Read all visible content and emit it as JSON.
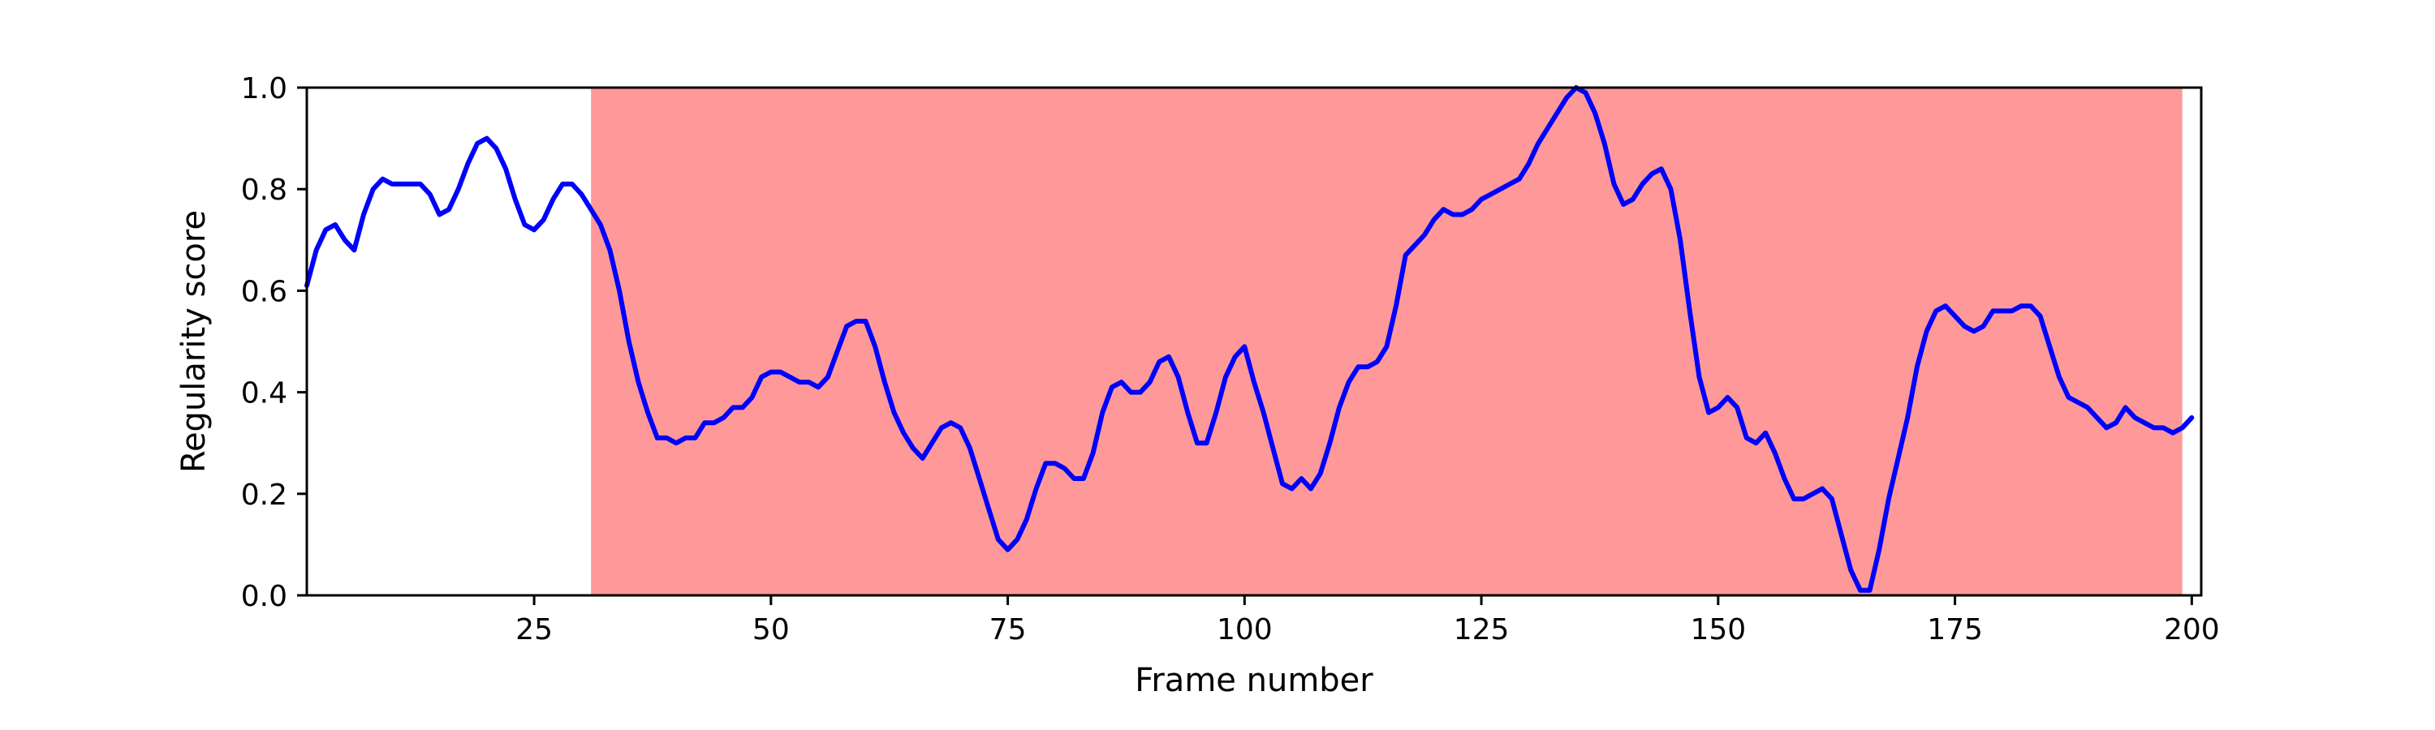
{
  "chart_data": {
    "type": "line",
    "title": "",
    "xlabel": "Frame number",
    "ylabel": "Regularity score",
    "xlim": [
      1,
      201
    ],
    "ylim": [
      0,
      1
    ],
    "xticks": [
      25,
      50,
      75,
      100,
      125,
      150,
      175,
      200
    ],
    "yticks": [
      0.0,
      0.2,
      0.4,
      0.6,
      0.8,
      1.0
    ],
    "xtick_labels": [
      "25",
      "50",
      "75",
      "100",
      "125",
      "150",
      "175",
      "200"
    ],
    "ytick_labels": [
      "0.0",
      "0.2",
      "0.4",
      "0.6",
      "0.8",
      "1.0"
    ],
    "grid": false,
    "line_color": "#0000ff",
    "shaded_region": {
      "x": [
        31,
        199
      ],
      "color": "#ff9999"
    },
    "series": [
      {
        "points": [
          [
            1,
            0.61
          ],
          [
            2,
            0.68
          ],
          [
            3,
            0.72
          ],
          [
            4,
            0.73
          ],
          [
            5,
            0.7
          ],
          [
            6,
            0.68
          ],
          [
            7,
            0.75
          ],
          [
            8,
            0.8
          ],
          [
            9,
            0.82
          ],
          [
            10,
            0.81
          ],
          [
            11,
            0.81
          ],
          [
            12,
            0.81
          ],
          [
            13,
            0.81
          ],
          [
            14,
            0.79
          ],
          [
            15,
            0.75
          ],
          [
            16,
            0.76
          ],
          [
            17,
            0.8
          ],
          [
            18,
            0.85
          ],
          [
            19,
            0.89
          ],
          [
            20,
            0.9
          ],
          [
            21,
            0.88
          ],
          [
            22,
            0.84
          ],
          [
            23,
            0.78
          ],
          [
            24,
            0.73
          ],
          [
            25,
            0.72
          ],
          [
            26,
            0.74
          ],
          [
            27,
            0.78
          ],
          [
            28,
            0.81
          ],
          [
            29,
            0.81
          ],
          [
            30,
            0.79
          ],
          [
            31,
            0.76
          ],
          [
            32,
            0.73
          ],
          [
            33,
            0.68
          ],
          [
            34,
            0.6
          ],
          [
            35,
            0.5
          ],
          [
            36,
            0.42
          ],
          [
            37,
            0.36
          ],
          [
            38,
            0.31
          ],
          [
            39,
            0.31
          ],
          [
            40,
            0.3
          ],
          [
            41,
            0.31
          ],
          [
            42,
            0.31
          ],
          [
            43,
            0.34
          ],
          [
            44,
            0.34
          ],
          [
            45,
            0.35
          ],
          [
            46,
            0.37
          ],
          [
            47,
            0.37
          ],
          [
            48,
            0.39
          ],
          [
            49,
            0.43
          ],
          [
            50,
            0.44
          ],
          [
            51,
            0.44
          ],
          [
            52,
            0.43
          ],
          [
            53,
            0.42
          ],
          [
            54,
            0.42
          ],
          [
            55,
            0.41
          ],
          [
            56,
            0.43
          ],
          [
            57,
            0.48
          ],
          [
            58,
            0.53
          ],
          [
            59,
            0.54
          ],
          [
            60,
            0.54
          ],
          [
            61,
            0.49
          ],
          [
            62,
            0.42
          ],
          [
            63,
            0.36
          ],
          [
            64,
            0.32
          ],
          [
            65,
            0.29
          ],
          [
            66,
            0.27
          ],
          [
            67,
            0.3
          ],
          [
            68,
            0.33
          ],
          [
            69,
            0.34
          ],
          [
            70,
            0.33
          ],
          [
            71,
            0.29
          ],
          [
            72,
            0.23
          ],
          [
            73,
            0.17
          ],
          [
            74,
            0.11
          ],
          [
            75,
            0.09
          ],
          [
            76,
            0.11
          ],
          [
            77,
            0.15
          ],
          [
            78,
            0.21
          ],
          [
            79,
            0.26
          ],
          [
            80,
            0.26
          ],
          [
            81,
            0.25
          ],
          [
            82,
            0.23
          ],
          [
            83,
            0.23
          ],
          [
            84,
            0.28
          ],
          [
            85,
            0.36
          ],
          [
            86,
            0.41
          ],
          [
            87,
            0.42
          ],
          [
            88,
            0.4
          ],
          [
            89,
            0.4
          ],
          [
            90,
            0.42
          ],
          [
            91,
            0.46
          ],
          [
            92,
            0.47
          ],
          [
            93,
            0.43
          ],
          [
            94,
            0.36
          ],
          [
            95,
            0.3
          ],
          [
            96,
            0.3
          ],
          [
            97,
            0.36
          ],
          [
            98,
            0.43
          ],
          [
            99,
            0.47
          ],
          [
            100,
            0.49
          ],
          [
            101,
            0.42
          ],
          [
            102,
            0.36
          ],
          [
            103,
            0.29
          ],
          [
            104,
            0.22
          ],
          [
            105,
            0.21
          ],
          [
            106,
            0.23
          ],
          [
            107,
            0.21
          ],
          [
            108,
            0.24
          ],
          [
            109,
            0.3
          ],
          [
            110,
            0.37
          ],
          [
            111,
            0.42
          ],
          [
            112,
            0.45
          ],
          [
            113,
            0.45
          ],
          [
            114,
            0.46
          ],
          [
            115,
            0.49
          ],
          [
            116,
            0.57
          ],
          [
            117,
            0.67
          ],
          [
            118,
            0.69
          ],
          [
            119,
            0.71
          ],
          [
            120,
            0.74
          ],
          [
            121,
            0.76
          ],
          [
            122,
            0.75
          ],
          [
            123,
            0.75
          ],
          [
            124,
            0.76
          ],
          [
            125,
            0.78
          ],
          [
            126,
            0.79
          ],
          [
            127,
            0.8
          ],
          [
            128,
            0.81
          ],
          [
            129,
            0.82
          ],
          [
            130,
            0.85
          ],
          [
            131,
            0.89
          ],
          [
            132,
            0.92
          ],
          [
            133,
            0.95
          ],
          [
            134,
            0.98
          ],
          [
            135,
            1.0
          ],
          [
            136,
            0.99
          ],
          [
            137,
            0.95
          ],
          [
            138,
            0.89
          ],
          [
            139,
            0.81
          ],
          [
            140,
            0.77
          ],
          [
            141,
            0.78
          ],
          [
            142,
            0.81
          ],
          [
            143,
            0.83
          ],
          [
            144,
            0.84
          ],
          [
            145,
            0.8
          ],
          [
            146,
            0.7
          ],
          [
            147,
            0.56
          ],
          [
            148,
            0.43
          ],
          [
            149,
            0.36
          ],
          [
            150,
            0.37
          ],
          [
            151,
            0.39
          ],
          [
            152,
            0.37
          ],
          [
            153,
            0.31
          ],
          [
            154,
            0.3
          ],
          [
            155,
            0.32
          ],
          [
            156,
            0.28
          ],
          [
            157,
            0.23
          ],
          [
            158,
            0.19
          ],
          [
            159,
            0.19
          ],
          [
            160,
            0.2
          ],
          [
            161,
            0.21
          ],
          [
            162,
            0.19
          ],
          [
            163,
            0.12
          ],
          [
            164,
            0.05
          ],
          [
            165,
            0.01
          ],
          [
            166,
            0.01
          ],
          [
            167,
            0.09
          ],
          [
            168,
            0.19
          ],
          [
            169,
            0.27
          ],
          [
            170,
            0.35
          ],
          [
            171,
            0.45
          ],
          [
            172,
            0.52
          ],
          [
            173,
            0.56
          ],
          [
            174,
            0.57
          ],
          [
            175,
            0.55
          ],
          [
            176,
            0.53
          ],
          [
            177,
            0.52
          ],
          [
            178,
            0.53
          ],
          [
            179,
            0.56
          ],
          [
            180,
            0.56
          ],
          [
            181,
            0.56
          ],
          [
            182,
            0.57
          ],
          [
            183,
            0.57
          ],
          [
            184,
            0.55
          ],
          [
            185,
            0.49
          ],
          [
            186,
            0.43
          ],
          [
            187,
            0.39
          ],
          [
            188,
            0.38
          ],
          [
            189,
            0.37
          ],
          [
            190,
            0.35
          ],
          [
            191,
            0.33
          ],
          [
            192,
            0.34
          ],
          [
            193,
            0.37
          ],
          [
            194,
            0.35
          ],
          [
            195,
            0.34
          ],
          [
            196,
            0.33
          ],
          [
            197,
            0.33
          ],
          [
            198,
            0.32
          ],
          [
            199,
            0.33
          ],
          [
            200,
            0.35
          ]
        ]
      }
    ]
  }
}
